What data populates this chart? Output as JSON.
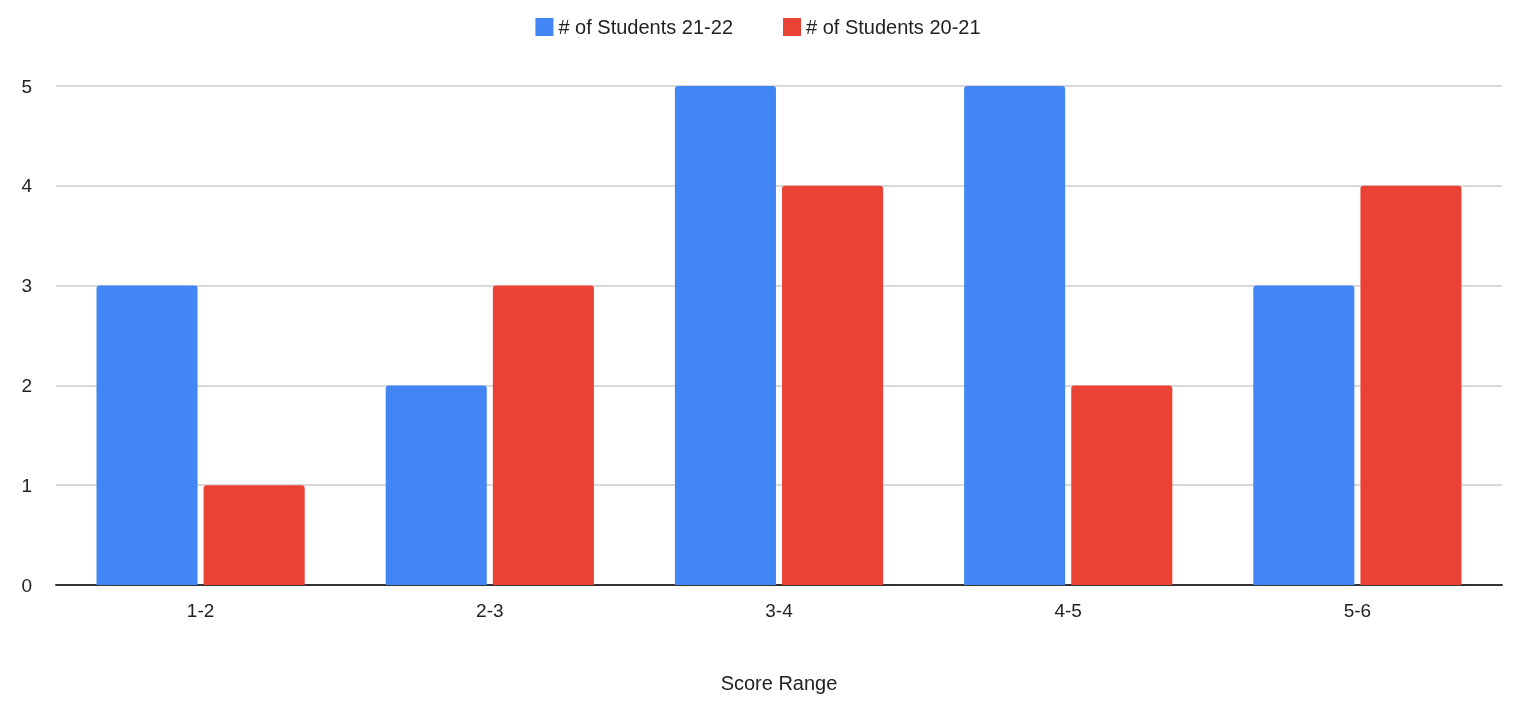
{
  "chart_data": {
    "type": "bar",
    "xlabel": "Score Range",
    "categories": [
      "1-2",
      "2-3",
      "3-4",
      "4-5",
      "5-6"
    ],
    "series": [
      {
        "name": "# of Students 21-22",
        "color": "#4285f4",
        "values": [
          3,
          2,
          5,
          5,
          3
        ]
      },
      {
        "name": "# of Students 20-21",
        "color": "#ea4335",
        "values": [
          1,
          3,
          4,
          2,
          4
        ]
      }
    ],
    "ylim": [
      0,
      5
    ],
    "yticks": [
      0,
      1,
      2,
      3,
      4,
      5
    ],
    "grid": "y",
    "legend": "top"
  }
}
